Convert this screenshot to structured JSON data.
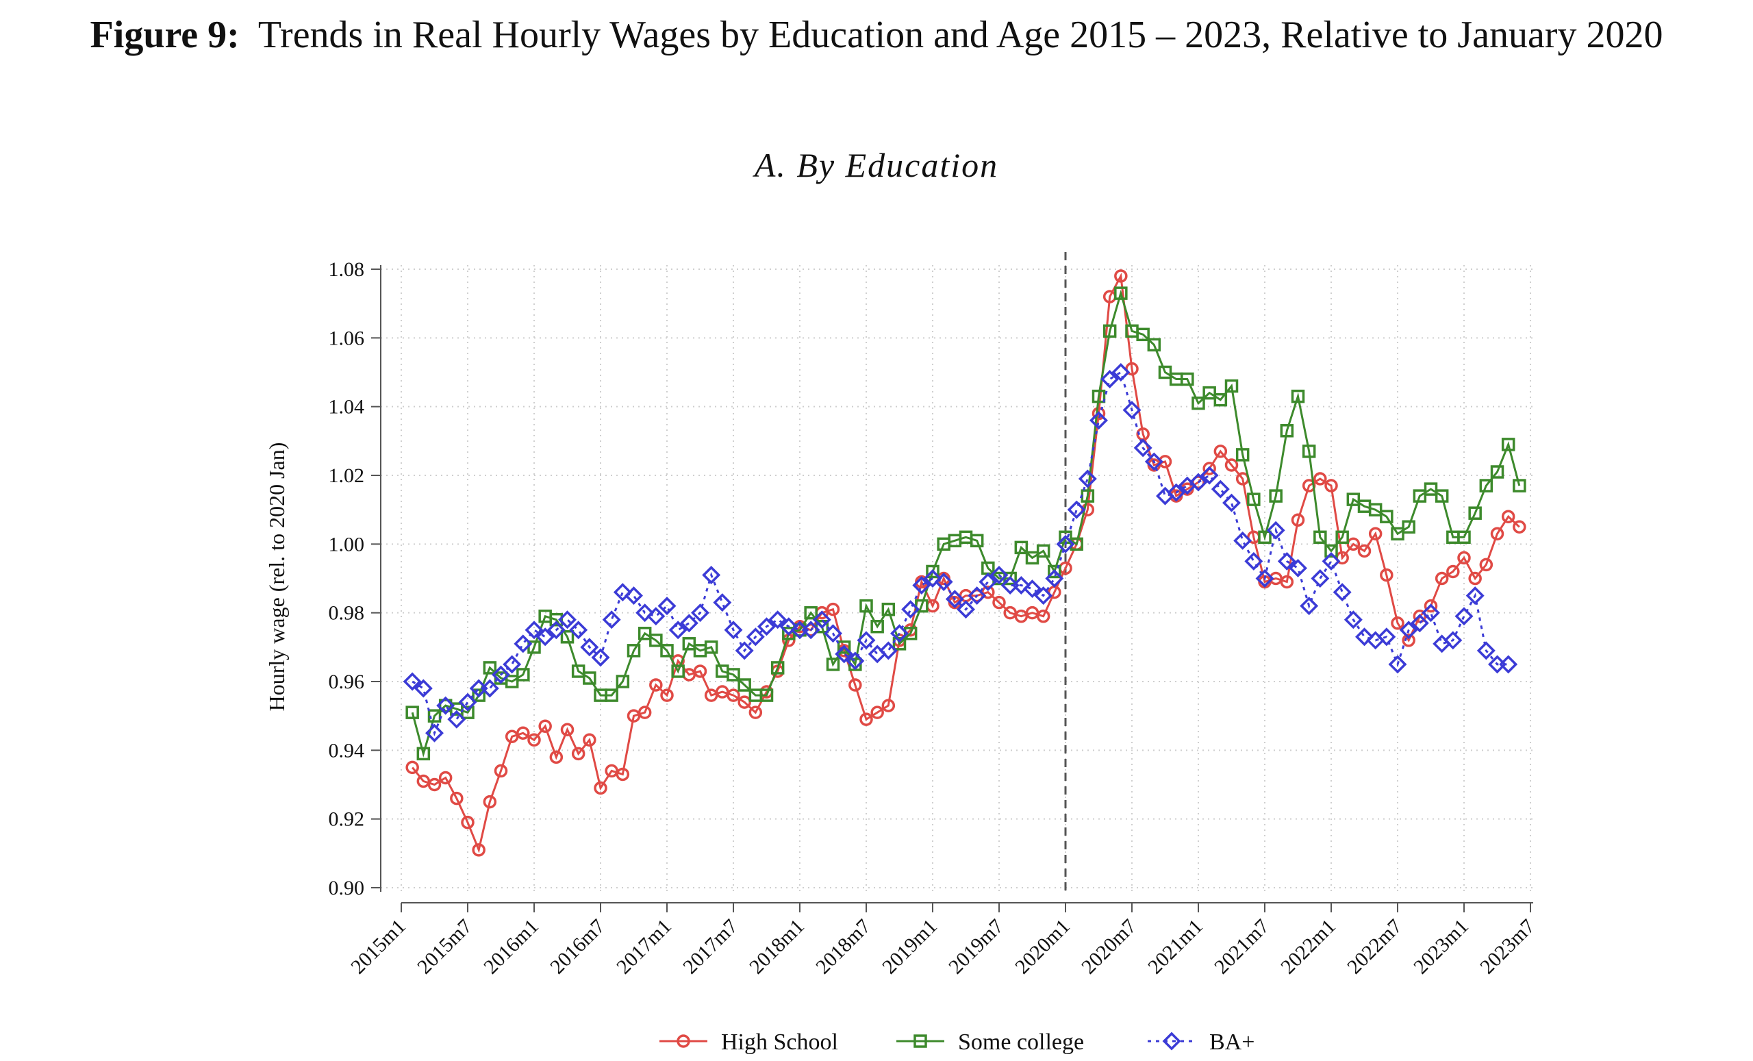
{
  "figure": {
    "label": "Figure 9:",
    "title": "Trends in Real Hourly Wages by Education and Age 2015 – 2023, Relative to January 2020"
  },
  "panel_title": "A. By Education",
  "colors": {
    "high_school": "#e04a45",
    "some_college": "#3d8a2c",
    "ba_plus": "#3b3bd6",
    "axis": "#555555",
    "grid": "#cfcfcf",
    "vline": "#555555"
  },
  "chart_data": {
    "type": "line",
    "title": "A. By Education",
    "xlabel": "",
    "ylabel": "Hourly wage (rel. to 2020 Jan)",
    "ylim": [
      0.9,
      1.08
    ],
    "yticks": [
      "0.90",
      "0.92",
      "0.94",
      "0.96",
      "0.98",
      "1.00",
      "1.02",
      "1.04",
      "1.06",
      "1.08"
    ],
    "xticks": [
      "2015m1",
      "2015m7",
      "2016m1",
      "2016m7",
      "2017m1",
      "2017m7",
      "2018m1",
      "2018m7",
      "2019m1",
      "2019m7",
      "2020m1",
      "2020m7",
      "2021m1",
      "2021m7",
      "2022m1",
      "2022m7",
      "2023m1",
      "2023m7"
    ],
    "x_start": "2015m1",
    "vline_at": "2020m1",
    "grid": true,
    "legend_position": "bottom",
    "series": [
      {
        "name": "High School",
        "marker": "circle",
        "line": "solid",
        "start": "2015m2",
        "values": [
          0.935,
          0.931,
          0.93,
          0.932,
          0.926,
          0.919,
          0.911,
          0.925,
          0.934,
          0.944,
          0.945,
          0.943,
          0.947,
          0.938,
          0.946,
          0.939,
          0.943,
          0.929,
          0.934,
          0.933,
          0.95,
          0.951,
          0.959,
          0.956,
          0.966,
          0.962,
          0.963,
          0.956,
          0.957,
          0.956,
          0.954,
          0.951,
          0.957,
          0.963,
          0.972,
          0.976,
          0.975,
          0.98,
          0.981,
          0.969,
          0.959,
          0.949,
          0.951,
          0.953,
          0.972,
          0.975,
          0.989,
          0.982,
          0.99,
          0.983,
          0.985,
          0.985,
          0.986,
          0.983,
          0.98,
          0.979,
          0.98,
          0.979,
          0.986,
          0.993,
          1.0,
          1.01,
          1.038,
          1.072,
          1.078,
          1.051,
          1.032,
          1.023,
          1.024,
          1.014,
          1.016,
          1.018,
          1.022,
          1.027,
          1.023,
          1.019,
          1.002,
          0.989,
          0.99,
          0.989,
          1.007,
          1.017,
          1.019,
          1.017,
          0.996,
          1.0,
          0.998,
          1.003,
          0.991,
          0.977,
          0.972,
          0.979,
          0.982,
          0.99,
          0.992,
          0.996,
          0.99,
          0.994,
          1.003,
          1.008,
          1.005
        ]
      },
      {
        "name": "Some college",
        "marker": "square",
        "line": "solid",
        "start": "2015m2",
        "values": [
          0.951,
          0.939,
          0.95,
          0.953,
          0.952,
          0.951,
          0.956,
          0.964,
          0.961,
          0.96,
          0.962,
          0.97,
          0.979,
          0.978,
          0.973,
          0.963,
          0.961,
          0.956,
          0.956,
          0.96,
          0.969,
          0.974,
          0.972,
          0.969,
          0.963,
          0.971,
          0.969,
          0.97,
          0.963,
          0.962,
          0.959,
          0.956,
          0.956,
          0.964,
          0.974,
          0.975,
          0.98,
          0.976,
          0.965,
          0.97,
          0.965,
          0.982,
          0.976,
          0.981,
          0.971,
          0.974,
          0.982,
          0.992,
          1.0,
          1.001,
          1.002,
          1.001,
          0.993,
          0.99,
          0.99,
          0.999,
          0.996,
          0.998,
          0.992,
          1.002,
          1.0,
          1.014,
          1.043,
          1.062,
          1.073,
          1.062,
          1.061,
          1.058,
          1.05,
          1.048,
          1.048,
          1.041,
          1.044,
          1.042,
          1.046,
          1.026,
          1.013,
          1.002,
          1.014,
          1.033,
          1.043,
          1.027,
          1.002,
          0.998,
          1.002,
          1.013,
          1.011,
          1.01,
          1.008,
          1.003,
          1.005,
          1.014,
          1.016,
          1.014,
          1.002,
          1.002,
          1.009,
          1.017,
          1.021,
          1.029,
          1.017
        ]
      },
      {
        "name": "BA+",
        "marker": "diamond",
        "line": "dotted",
        "start": "2015m2",
        "values": [
          0.96,
          0.958,
          0.945,
          0.953,
          0.949,
          0.954,
          0.958,
          0.958,
          0.962,
          0.965,
          0.971,
          0.975,
          0.973,
          0.975,
          0.978,
          0.975,
          0.97,
          0.967,
          0.978,
          0.986,
          0.985,
          0.98,
          0.979,
          0.982,
          0.975,
          0.977,
          0.98,
          0.991,
          0.983,
          0.975,
          0.969,
          0.973,
          0.976,
          0.978,
          0.976,
          0.975,
          0.975,
          0.978,
          0.974,
          0.968,
          0.966,
          0.972,
          0.968,
          0.969,
          0.974,
          0.981,
          0.988,
          0.99,
          0.989,
          0.984,
          0.981,
          0.985,
          0.989,
          0.991,
          0.988,
          0.988,
          0.987,
          0.985,
          0.99,
          1.0,
          1.01,
          1.019,
          1.036,
          1.048,
          1.05,
          1.039,
          1.028,
          1.024,
          1.014,
          1.015,
          1.017,
          1.018,
          1.02,
          1.016,
          1.012,
          1.001,
          0.995,
          0.99,
          1.004,
          0.995,
          0.993,
          0.982,
          0.99,
          0.995,
          0.986,
          0.978,
          0.973,
          0.972,
          0.973,
          0.965,
          0.975,
          0.977,
          0.98,
          0.971,
          0.972,
          0.979,
          0.985,
          0.969,
          0.965,
          0.965
        ]
      }
    ]
  }
}
